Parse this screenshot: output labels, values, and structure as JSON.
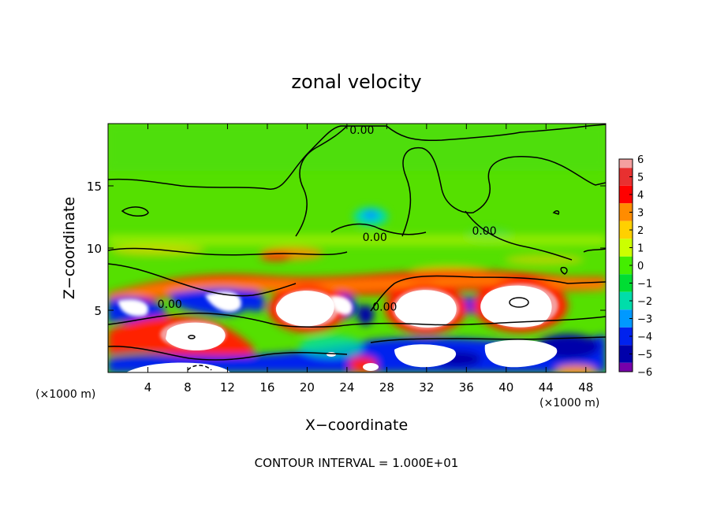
{
  "chart_data": {
    "type": "heatmap",
    "title": "zonal velocity",
    "xlabel": "X−coordinate",
    "ylabel": "Z−coordinate",
    "x_unit_left": "(×1000 m)",
    "x_unit_right": "(×1000 m)",
    "xlim": [
      0,
      50
    ],
    "ylim": [
      0,
      20
    ],
    "xticks": [
      4,
      8,
      12,
      16,
      20,
      24,
      28,
      32,
      36,
      40,
      44,
      48
    ],
    "xtick_labels": [
      "4",
      "8",
      "12",
      "16",
      "20",
      "24",
      "28",
      "32",
      "36",
      "40",
      "44",
      "48"
    ],
    "yticks": [
      5,
      10,
      15
    ],
    "ytick_labels": [
      "5",
      "10",
      "15"
    ],
    "footer": "CONTOUR INTERVAL = 1.000E+01",
    "contour_labels": [
      {
        "text": "0.00",
        "x": 25.5,
        "y": 19.5
      },
      {
        "text": "0.00",
        "x": 26.8,
        "y": 10.9
      },
      {
        "text": "0.00",
        "x": 37.8,
        "y": 11.4
      },
      {
        "text": "0.00",
        "x": 6.2,
        "y": 5.5
      },
      {
        "text": "0.00",
        "x": 27.8,
        "y": 5.3
      }
    ],
    "colorbar": {
      "values": [
        6,
        5,
        4,
        3,
        2,
        1,
        0,
        -1,
        -2,
        -3,
        -4,
        -5,
        -6
      ],
      "labels": [
        "6",
        "5",
        "4",
        "3",
        "2",
        "1",
        "0",
        "−1",
        "−2",
        "−3",
        "−4",
        "−5",
        "−6"
      ],
      "colors": [
        "#f4a0a0",
        "#e83030",
        "#ff0000",
        "#ff8c00",
        "#ffd000",
        "#ccff00",
        "#44ee00",
        "#00dd33",
        "#00ddaa",
        "#0099ff",
        "#0022ee",
        "#0000aa",
        "#7700aa"
      ]
    },
    "colors": {
      "background_field": "#55e000",
      "positive_core": "#ffffff",
      "negative_core": "#ffffff"
    }
  }
}
